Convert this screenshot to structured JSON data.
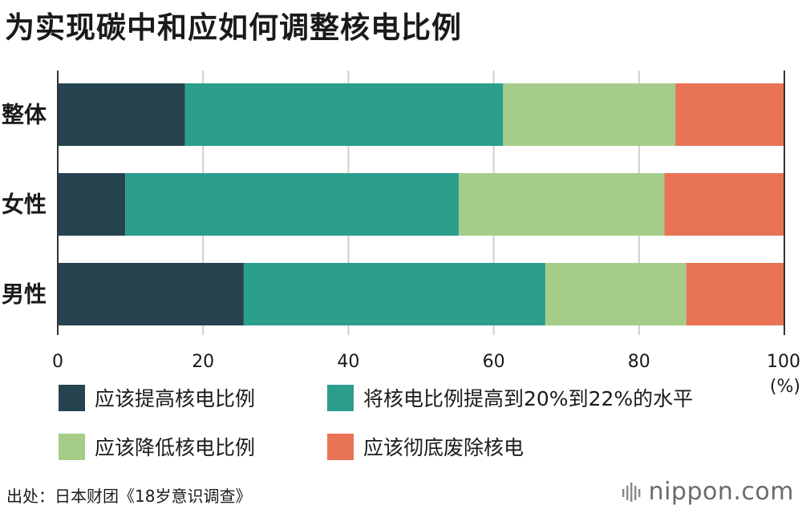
{
  "chart_data": {
    "type": "bar",
    "orientation": "horizontal",
    "stacked": true,
    "title": "为实现碳中和应如何调整核电比例",
    "categories": [
      "整体",
      "女性",
      "男性"
    ],
    "series": [
      {
        "name": "应该提高核电比例",
        "color": "#26444f",
        "values": [
          17.5,
          9.3,
          25.6
        ]
      },
      {
        "name": "将核电比例提高到20%到22%的水平",
        "color": "#2b9e8c",
        "values": [
          43.8,
          45.9,
          41.5
        ]
      },
      {
        "name": "应该降低核电比例",
        "color": "#a6cc8a",
        "values": [
          23.7,
          28.3,
          19.4
        ]
      },
      {
        "name": "应该彻底废除核电",
        "color": "#e97355",
        "values": [
          15.0,
          16.5,
          13.5
        ]
      }
    ],
    "xlim": [
      0,
      100
    ],
    "xticks": [
      "0",
      "20",
      "40",
      "60",
      "80",
      "100"
    ],
    "xunit": "(%)",
    "grid": true,
    "legend_position": "bottom"
  },
  "footer": {
    "source": "出处：日本财团《18岁意识调查》",
    "brand": "nippon.com"
  }
}
